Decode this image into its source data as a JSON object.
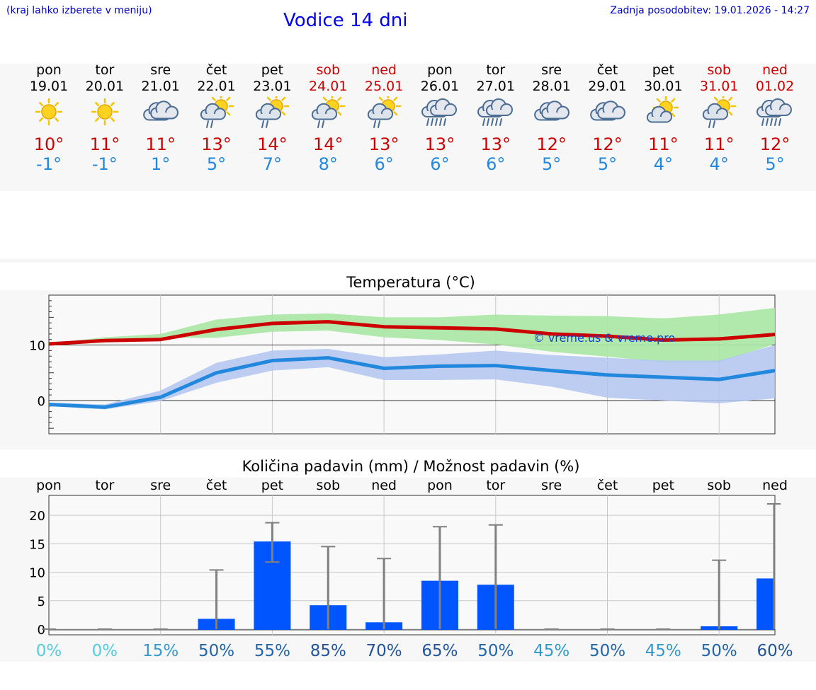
{
  "header": {
    "hint": "(kraj lahko izberete v meniju)",
    "title": "Vodice 14 dni",
    "updated": "Zadnja posodobitev: 19.01.2026 - 14:27"
  },
  "colors": {
    "max": "#cc0000",
    "min": "#2288dd",
    "weekend": "#cc0000",
    "bar": "#0055ff",
    "maxBand": "#a8e6a3",
    "minBand": "#b2c6f0"
  },
  "days": [
    {
      "name": "pon",
      "date": "19.01",
      "weekend": false,
      "icon": "sunny-icon",
      "tmax": "10°",
      "tmin": "-1°"
    },
    {
      "name": "tor",
      "date": "20.01",
      "weekend": false,
      "icon": "sunny-icon",
      "tmax": "11°",
      "tmin": "-1°"
    },
    {
      "name": "sre",
      "date": "21.01",
      "weekend": false,
      "icon": "cloudy-icon",
      "tmax": "11°",
      "tmin": "1°"
    },
    {
      "name": "čet",
      "date": "22.01",
      "weekend": false,
      "icon": "sun-cloud-rain-icon",
      "tmax": "13°",
      "tmin": "5°"
    },
    {
      "name": "pet",
      "date": "23.01",
      "weekend": false,
      "icon": "sun-cloud-rain-icon",
      "tmax": "14°",
      "tmin": "7°"
    },
    {
      "name": "sob",
      "date": "24.01",
      "weekend": true,
      "icon": "sun-cloud-rain-icon",
      "tmax": "14°",
      "tmin": "8°"
    },
    {
      "name": "ned",
      "date": "25.01",
      "weekend": true,
      "icon": "sun-cloud-rain-icon",
      "tmax": "13°",
      "tmin": "6°"
    },
    {
      "name": "pon",
      "date": "26.01",
      "weekend": false,
      "icon": "heavy-rain-icon",
      "tmax": "13°",
      "tmin": "6°"
    },
    {
      "name": "tor",
      "date": "27.01",
      "weekend": false,
      "icon": "heavy-rain-icon",
      "tmax": "13°",
      "tmin": "6°"
    },
    {
      "name": "sre",
      "date": "28.01",
      "weekend": false,
      "icon": "cloudy-icon",
      "tmax": "12°",
      "tmin": "5°"
    },
    {
      "name": "čet",
      "date": "29.01",
      "weekend": false,
      "icon": "cloudy-icon",
      "tmax": "12°",
      "tmin": "5°"
    },
    {
      "name": "pet",
      "date": "30.01",
      "weekend": false,
      "icon": "sun-cloud-icon",
      "tmax": "11°",
      "tmin": "4°"
    },
    {
      "name": "sob",
      "date": "31.01",
      "weekend": true,
      "icon": "sun-cloud-rain-icon",
      "tmax": "11°",
      "tmin": "4°"
    },
    {
      "name": "ned",
      "date": "01.02",
      "weekend": true,
      "icon": "heavy-rain-icon",
      "tmax": "12°",
      "tmin": "5°"
    }
  ],
  "chart_data": [
    {
      "type": "line",
      "title": "Temperatura (°C)",
      "watermark": "© vreme.us & vreme.pro",
      "xlabel": "",
      "ylabel": "",
      "ylim": [
        -6,
        19
      ],
      "yticks": [
        "0",
        "10"
      ],
      "ytick_values": [
        0,
        10
      ],
      "series": [
        {
          "name": "max",
          "values": [
            10.2,
            10.8,
            11.0,
            12.8,
            13.9,
            14.2,
            13.3,
            13.1,
            12.9,
            12.0,
            11.6,
            10.9,
            11.1,
            11.9
          ],
          "band_low": [
            10.3,
            11.0,
            11.3,
            11.3,
            12.4,
            12.6,
            11.4,
            10.9,
            10.1,
            8.8,
            7.9,
            6.9,
            6.9,
            10.2
          ],
          "band_high": [
            10.3,
            11.4,
            12.0,
            14.6,
            15.5,
            15.7,
            15.0,
            15.0,
            15.5,
            15.3,
            15.2,
            14.8,
            15.5,
            16.7
          ]
        },
        {
          "name": "min",
          "values": [
            -0.7,
            -1.2,
            0.6,
            5.0,
            7.2,
            7.7,
            5.8,
            6.2,
            6.3,
            5.4,
            4.6,
            4.2,
            3.8,
            5.4
          ],
          "band_low": [
            -1.0,
            -1.6,
            -0.1,
            3.2,
            5.4,
            6.0,
            3.7,
            3.7,
            3.8,
            2.5,
            0.5,
            0.0,
            -0.5,
            0.4
          ],
          "band_high": [
            -0.4,
            -0.7,
            1.8,
            6.8,
            9.0,
            9.3,
            7.8,
            8.3,
            9.0,
            8.2,
            7.7,
            7.2,
            7.2,
            10.0
          ]
        }
      ]
    },
    {
      "type": "bar",
      "title": "Količina padavin (mm) / Možnost padavin (%)",
      "categories": [
        "pon",
        "tor",
        "sre",
        "čet",
        "pet",
        "sob",
        "ned",
        "pon",
        "tor",
        "sre",
        "čet",
        "pet",
        "sob",
        "ned"
      ],
      "values": [
        0,
        0,
        0,
        1.8,
        15.4,
        4.2,
        1.2,
        8.5,
        7.8,
        0,
        0,
        0,
        0.5,
        8.9
      ],
      "err_low": [
        0,
        0,
        0,
        0,
        11.8,
        0,
        0,
        0,
        0,
        0,
        0,
        0,
        0,
        0
      ],
      "err_high": [
        0,
        0,
        0,
        10.4,
        18.7,
        14.5,
        12.4,
        18.0,
        18.3,
        0,
        0,
        0,
        12.1,
        22.0
      ],
      "chance": [
        "0%",
        "0%",
        "15%",
        "50%",
        "55%",
        "85%",
        "70%",
        "65%",
        "50%",
        "45%",
        "50%",
        "45%",
        "50%",
        "60%"
      ],
      "chance_values": [
        0,
        0,
        15,
        50,
        55,
        85,
        70,
        65,
        50,
        45,
        50,
        45,
        50,
        60
      ],
      "ylim": [
        -1,
        23.5
      ],
      "yticks": [
        "0",
        "5",
        "10",
        "15",
        "20"
      ],
      "ytick_values": [
        0,
        5,
        10,
        15,
        20
      ]
    }
  ]
}
